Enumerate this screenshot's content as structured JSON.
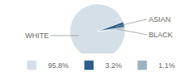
{
  "chart_data": {
    "type": "pie",
    "categories": [
      "95.8%",
      "3.2%",
      "1.1%"
    ],
    "values": [
      95.8,
      3.2,
      1.1
    ],
    "colors": [
      "#d4dfe8",
      "#2d5f8a",
      "#9eb3c2"
    ],
    "annotations": [
      "WHITE",
      "ASIAN",
      "BLACK"
    ],
    "legend": "bottom"
  }
}
